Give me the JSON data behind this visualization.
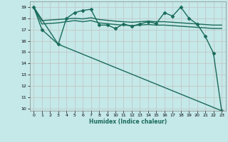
{
  "title": "",
  "xlabel": "Humidex (Indice chaleur)",
  "background_color": "#c5e8e8",
  "grid_color": "#c0b8b8",
  "line_color": "#1a6b5a",
  "xlim": [
    -0.5,
    23.5
  ],
  "ylim": [
    9.8,
    19.5
  ],
  "yticks": [
    10,
    11,
    12,
    13,
    14,
    15,
    16,
    17,
    18,
    19
  ],
  "xticks": [
    0,
    1,
    2,
    3,
    4,
    5,
    6,
    7,
    8,
    9,
    10,
    11,
    12,
    13,
    14,
    15,
    16,
    17,
    18,
    19,
    20,
    21,
    22,
    23
  ],
  "series": [
    {
      "x": [
        0,
        1,
        3,
        4,
        5,
        6,
        7,
        8,
        9,
        10,
        11,
        12,
        13,
        14,
        15,
        16,
        17,
        18,
        19,
        20,
        21,
        22,
        23
      ],
      "y": [
        19,
        17,
        15.7,
        18.0,
        18.5,
        18.7,
        18.8,
        17.4,
        17.4,
        17.1,
        17.5,
        17.3,
        17.5,
        17.7,
        17.55,
        18.5,
        18.2,
        19.0,
        18.0,
        17.5,
        16.4,
        14.9,
        9.8
      ],
      "marker": "D",
      "markersize": 2.5,
      "linewidth": 1.0
    },
    {
      "x": [
        0,
        1,
        3,
        5,
        6,
        7,
        8,
        10,
        11,
        12,
        13,
        14,
        15,
        16,
        17,
        18,
        19,
        20,
        21,
        22,
        23
      ],
      "y": [
        19,
        17.8,
        17.9,
        18.0,
        17.95,
        18.05,
        17.9,
        17.75,
        17.7,
        17.65,
        17.7,
        17.75,
        17.7,
        17.7,
        17.65,
        17.6,
        17.55,
        17.5,
        17.45,
        17.4,
        17.4
      ],
      "marker": null,
      "markersize": 0,
      "linewidth": 1.0
    },
    {
      "x": [
        0,
        1,
        3,
        5,
        6,
        7,
        8,
        10,
        11,
        12,
        13,
        14,
        15,
        16,
        17,
        18,
        19,
        20,
        21,
        22,
        23
      ],
      "y": [
        19,
        17.5,
        17.6,
        17.8,
        17.7,
        17.8,
        17.6,
        17.45,
        17.4,
        17.35,
        17.4,
        17.45,
        17.4,
        17.4,
        17.35,
        17.3,
        17.25,
        17.2,
        17.15,
        17.1,
        17.1
      ],
      "marker": null,
      "markersize": 0,
      "linewidth": 1.0
    },
    {
      "x": [
        0,
        3,
        23
      ],
      "y": [
        19,
        15.7,
        9.8
      ],
      "marker": null,
      "markersize": 0,
      "linewidth": 1.0
    }
  ]
}
